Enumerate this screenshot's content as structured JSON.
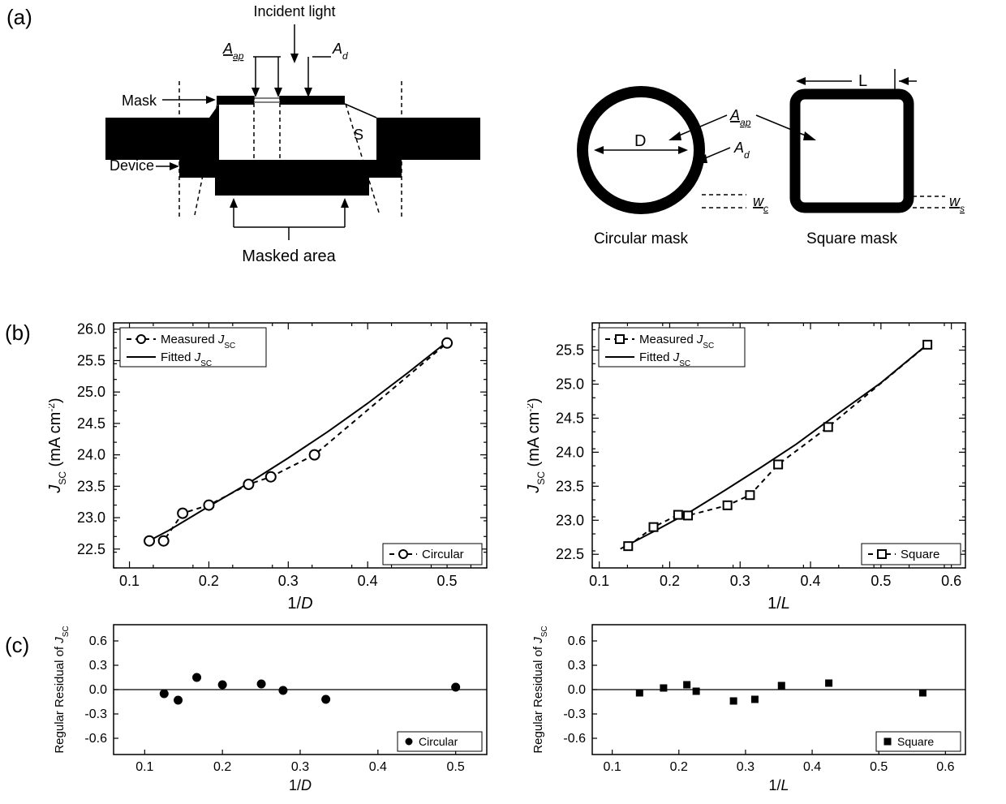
{
  "panel_labels": {
    "a": "(a)",
    "b": "(b)",
    "c": "(c)"
  },
  "a": {
    "labels": {
      "incident": "Incident light",
      "Aap": "A",
      "Aap_sub": "ap",
      "Ad": "A",
      "Ad_sub": "d",
      "mask": "Mask",
      "device": "Device",
      "masked_area": "Masked  area",
      "S": "S",
      "D": "D",
      "L": "L",
      "wc": "w",
      "wc_sub": "c",
      "ws": "w",
      "ws_sub": "s",
      "circ_mask": "Circular mask",
      "sq_mask": "Square mask"
    }
  },
  "b_left": {
    "type": "line+scatter",
    "xlabel": "1/D",
    "ylabel_main": "J",
    "ylabel_sub": "SC",
    "ylabel_units": " (mA cm",
    "ylabel_sup": "-2",
    "ylabel_close": ")",
    "xlim": [
      0.08,
      0.55
    ],
    "xtick_start": 0.1,
    "xtick_step": 0.1,
    "xminor": 0.05,
    "ylim": [
      22.2,
      26.1
    ],
    "ytick_start": 22.5,
    "ytick_step": 0.5,
    "yminor": 0.25,
    "points_x": [
      0.125,
      0.143,
      0.167,
      0.2,
      0.25,
      0.278,
      0.333,
      0.5
    ],
    "points_y": [
      22.63,
      22.63,
      23.07,
      23.2,
      23.53,
      23.65,
      24.0,
      25.78
    ],
    "fit_x": [
      0.12,
      0.15,
      0.2,
      0.25,
      0.3,
      0.35,
      0.4,
      0.45,
      0.5
    ],
    "fit_y": [
      22.6,
      22.8,
      23.18,
      23.55,
      23.95,
      24.37,
      24.82,
      25.3,
      25.8
    ],
    "legend_top": {
      "m1": "Measured ",
      "m2": "J",
      "m3": "SC",
      "f1": "Fitted ",
      "f2": "J",
      "f3": "SC"
    },
    "legend_br": "Circular",
    "marker": "circle",
    "colors": {
      "axis": "#000000",
      "line": "#000000",
      "marker_fill": "#ffffff",
      "marker_stroke": "#000000",
      "bg": "#ffffff"
    },
    "marker_size": 6
  },
  "b_right": {
    "type": "line+scatter",
    "xlabel": "1/L",
    "ylabel_main": "J",
    "ylabel_sub": "SC",
    "ylabel_units": " (mA cm",
    "ylabel_sup": "-2",
    "ylabel_close": ")",
    "xlim": [
      0.09,
      0.62
    ],
    "xtick_start": 0.1,
    "xtick_step": 0.1,
    "xminor": 0.05,
    "ylim": [
      22.3,
      25.9
    ],
    "ytick_start": 22.5,
    "ytick_step": 0.5,
    "yminor": 0.25,
    "points_x": [
      0.141,
      0.177,
      0.212,
      0.226,
      0.282,
      0.314,
      0.354,
      0.425,
      0.566
    ],
    "points_y": [
      22.62,
      22.9,
      23.08,
      23.07,
      23.22,
      23.37,
      23.82,
      24.37,
      25.58
    ],
    "fit_x": [
      0.13,
      0.18,
      0.23,
      0.28,
      0.33,
      0.38,
      0.43,
      0.5,
      0.57
    ],
    "fit_y": [
      22.58,
      22.85,
      23.13,
      23.45,
      23.78,
      24.12,
      24.5,
      25.02,
      25.62
    ],
    "legend_top": {
      "m1": "Measured ",
      "m2": "J",
      "m3": "SC",
      "f1": "Fitted ",
      "f2": "J",
      "f3": "SC"
    },
    "legend_br": "Square",
    "marker": "square",
    "colors": {
      "axis": "#000000",
      "line": "#000000",
      "marker_fill": "#ffffff",
      "marker_stroke": "#000000",
      "bg": "#ffffff"
    },
    "marker_size": 10
  },
  "c_left": {
    "type": "scatter",
    "xlabel": "1/D",
    "ylabel1": "Regular Residual of ",
    "ylabel2": "J",
    "ylabel3": "SC",
    "xlim": [
      0.06,
      0.54
    ],
    "xtick_start": 0.1,
    "xtick_step": 0.1,
    "ylim": [
      -0.8,
      0.8
    ],
    "ytick_start": -0.6,
    "ytick_step": 0.3,
    "points_x": [
      0.125,
      0.143,
      0.167,
      0.2,
      0.25,
      0.278,
      0.333,
      0.5
    ],
    "points_y": [
      -0.05,
      -0.13,
      0.15,
      0.06,
      0.07,
      -0.01,
      -0.12,
      0.03
    ],
    "legend": "Circular",
    "marker": "circle-solid",
    "colors": {
      "axis": "#000000",
      "marker": "#000000",
      "bg": "#ffffff"
    },
    "marker_size": 5
  },
  "c_right": {
    "type": "scatter",
    "xlabel": "1/L",
    "ylabel1": "Regular Residual of ",
    "ylabel2": "J",
    "ylabel3": "SC",
    "xlim": [
      0.07,
      0.63
    ],
    "xtick_start": 0.1,
    "xtick_step": 0.1,
    "ylim": [
      -0.8,
      0.8
    ],
    "ytick_start": -0.6,
    "ytick_step": 0.3,
    "points_x": [
      0.141,
      0.177,
      0.212,
      0.226,
      0.282,
      0.314,
      0.354,
      0.425,
      0.566
    ],
    "points_y": [
      -0.04,
      0.02,
      0.06,
      -0.02,
      -0.14,
      -0.12,
      0.05,
      0.08,
      -0.04
    ],
    "legend": "Square",
    "marker": "square-solid",
    "colors": {
      "axis": "#000000",
      "marker": "#000000",
      "bg": "#ffffff"
    },
    "marker_size": 8
  }
}
